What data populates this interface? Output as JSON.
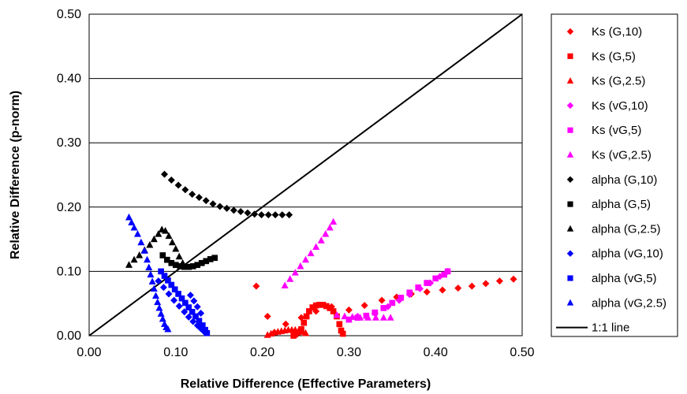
{
  "chart_data": {
    "type": "scatter",
    "title": "",
    "xlabel": "Relative Difference (Effective Parameters)",
    "ylabel": "Relative Difference (p-norm)",
    "xlim": [
      0,
      0.5
    ],
    "ylim": [
      0,
      0.5
    ],
    "x_ticks": [
      "0.00",
      "0.10",
      "0.20",
      "0.30",
      "0.40",
      "0.50"
    ],
    "y_ticks": [
      "0.00",
      "0.10",
      "0.20",
      "0.30",
      "0.40",
      "0.50"
    ],
    "grid": "horizontal",
    "legend_position": "right",
    "series": [
      {
        "name": "Ks (G,10)",
        "marker": "diamond",
        "color": "#ff0000",
        "points": [
          [
            0.193,
            0.077
          ],
          [
            0.206,
            0.03
          ],
          [
            0.214,
            0.005
          ],
          [
            0.227,
            0.018
          ],
          [
            0.245,
            0.028
          ],
          [
            0.262,
            0.038
          ],
          [
            0.28,
            0.045
          ],
          [
            0.3,
            0.04
          ],
          [
            0.318,
            0.047
          ],
          [
            0.338,
            0.055
          ],
          [
            0.355,
            0.06
          ],
          [
            0.372,
            0.065
          ],
          [
            0.39,
            0.068
          ],
          [
            0.408,
            0.071
          ],
          [
            0.426,
            0.074
          ],
          [
            0.442,
            0.077
          ],
          [
            0.458,
            0.081
          ],
          [
            0.474,
            0.085
          ],
          [
            0.49,
            0.088
          ]
        ]
      },
      {
        "name": "Ks (G,5)",
        "marker": "square",
        "color": "#ff0000",
        "points": [
          [
            0.236,
            0.0
          ],
          [
            0.238,
            0.002
          ],
          [
            0.241,
            0.005
          ],
          [
            0.245,
            0.01
          ],
          [
            0.248,
            0.02
          ],
          [
            0.251,
            0.03
          ],
          [
            0.254,
            0.038
          ],
          [
            0.258,
            0.044
          ],
          [
            0.262,
            0.047
          ],
          [
            0.266,
            0.048
          ],
          [
            0.27,
            0.048
          ],
          [
            0.274,
            0.046
          ],
          [
            0.278,
            0.043
          ],
          [
            0.282,
            0.038
          ],
          [
            0.286,
            0.03
          ],
          [
            0.289,
            0.018
          ],
          [
            0.291,
            0.008
          ],
          [
            0.293,
            0.003
          ]
        ]
      },
      {
        "name": "Ks (G,2.5)",
        "marker": "triangle",
        "color": "#ff0000",
        "points": [
          [
            0.206,
            0.001
          ],
          [
            0.21,
            0.003
          ],
          [
            0.214,
            0.005
          ],
          [
            0.218,
            0.006
          ],
          [
            0.222,
            0.007
          ],
          [
            0.226,
            0.008
          ],
          [
            0.23,
            0.009
          ],
          [
            0.234,
            0.009
          ],
          [
            0.238,
            0.009
          ],
          [
            0.242,
            0.008
          ],
          [
            0.246,
            0.006
          ],
          [
            0.25,
            0.004
          ]
        ]
      },
      {
        "name": "Ks (vG,10)",
        "marker": "diamond",
        "color": "#ff00ff",
        "points": [
          [
            0.31,
            0.03
          ],
          [
            0.33,
            0.035
          ],
          [
            0.345,
            0.045
          ],
          [
            0.358,
            0.055
          ],
          [
            0.37,
            0.064
          ],
          [
            0.382,
            0.073
          ],
          [
            0.394,
            0.082
          ],
          [
            0.405,
            0.092
          ],
          [
            0.414,
            0.1
          ]
        ]
      },
      {
        "name": "Ks (vG,5)",
        "marker": "square",
        "color": "#ff00ff",
        "points": [
          [
            0.3,
            0.025
          ],
          [
            0.31,
            0.028
          ],
          [
            0.32,
            0.031
          ],
          [
            0.33,
            0.036
          ],
          [
            0.34,
            0.043
          ],
          [
            0.35,
            0.051
          ],
          [
            0.36,
            0.059
          ],
          [
            0.37,
            0.067
          ],
          [
            0.38,
            0.075
          ],
          [
            0.39,
            0.082
          ],
          [
            0.4,
            0.089
          ],
          [
            0.41,
            0.095
          ],
          [
            0.414,
            0.1
          ]
        ]
      },
      {
        "name": "Ks (vG,2.5)",
        "marker": "triangle",
        "color": "#ff00ff",
        "points": [
          [
            0.226,
            0.078
          ],
          [
            0.232,
            0.088
          ],
          [
            0.238,
            0.098
          ],
          [
            0.244,
            0.108
          ],
          [
            0.25,
            0.118
          ],
          [
            0.256,
            0.128
          ],
          [
            0.262,
            0.138
          ],
          [
            0.268,
            0.148
          ],
          [
            0.273,
            0.158
          ],
          [
            0.278,
            0.168
          ],
          [
            0.282,
            0.177
          ],
          [
            0.286,
            0.032
          ],
          [
            0.295,
            0.03
          ],
          [
            0.304,
            0.029
          ],
          [
            0.313,
            0.028
          ],
          [
            0.322,
            0.028
          ],
          [
            0.331,
            0.028
          ],
          [
            0.34,
            0.028
          ],
          [
            0.348,
            0.028
          ]
        ]
      },
      {
        "name": "alpha (G,10)",
        "marker": "diamond",
        "color": "#000000",
        "points": [
          [
            0.087,
            0.251
          ],
          [
            0.095,
            0.242
          ],
          [
            0.103,
            0.234
          ],
          [
            0.111,
            0.227
          ],
          [
            0.119,
            0.22
          ],
          [
            0.127,
            0.215
          ],
          [
            0.135,
            0.21
          ],
          [
            0.143,
            0.205
          ],
          [
            0.151,
            0.201
          ],
          [
            0.159,
            0.198
          ],
          [
            0.167,
            0.195
          ],
          [
            0.175,
            0.193
          ],
          [
            0.183,
            0.191
          ],
          [
            0.191,
            0.189
          ],
          [
            0.199,
            0.188
          ],
          [
            0.207,
            0.188
          ],
          [
            0.215,
            0.188
          ],
          [
            0.223,
            0.188
          ],
          [
            0.231,
            0.188
          ]
        ]
      },
      {
        "name": "alpha (G,5)",
        "marker": "square",
        "color": "#000000",
        "points": [
          [
            0.085,
            0.125
          ],
          [
            0.09,
            0.118
          ],
          [
            0.095,
            0.113
          ],
          [
            0.1,
            0.11
          ],
          [
            0.105,
            0.108
          ],
          [
            0.11,
            0.107
          ],
          [
            0.115,
            0.107
          ],
          [
            0.12,
            0.108
          ],
          [
            0.125,
            0.11
          ],
          [
            0.13,
            0.113
          ],
          [
            0.135,
            0.116
          ],
          [
            0.14,
            0.119
          ],
          [
            0.145,
            0.121
          ]
        ]
      },
      {
        "name": "alpha (G,2.5)",
        "marker": "triangle",
        "color": "#000000",
        "points": [
          [
            0.046,
            0.11
          ],
          [
            0.052,
            0.118
          ],
          [
            0.058,
            0.125
          ],
          [
            0.064,
            0.133
          ],
          [
            0.07,
            0.141
          ],
          [
            0.075,
            0.15
          ],
          [
            0.08,
            0.158
          ],
          [
            0.084,
            0.165
          ],
          [
            0.088,
            0.163
          ],
          [
            0.092,
            0.155
          ],
          [
            0.096,
            0.145
          ],
          [
            0.1,
            0.135
          ],
          [
            0.104,
            0.123
          ],
          [
            0.108,
            0.113
          ],
          [
            0.112,
            0.107
          ]
        ]
      },
      {
        "name": "alpha (vG,10)",
        "marker": "diamond",
        "color": "#0000ff",
        "points": [
          [
            0.08,
            0.085
          ],
          [
            0.086,
            0.075
          ],
          [
            0.092,
            0.065
          ],
          [
            0.098,
            0.055
          ],
          [
            0.104,
            0.046
          ],
          [
            0.11,
            0.037
          ],
          [
            0.115,
            0.029
          ],
          [
            0.12,
            0.022
          ],
          [
            0.125,
            0.016
          ],
          [
            0.129,
            0.011
          ],
          [
            0.133,
            0.006
          ],
          [
            0.117,
            0.063
          ],
          [
            0.121,
            0.054
          ],
          [
            0.125,
            0.045
          ],
          [
            0.129,
            0.035
          ]
        ]
      },
      {
        "name": "alpha (vG,5)",
        "marker": "square",
        "color": "#0000ff",
        "points": [
          [
            0.083,
            0.1
          ],
          [
            0.087,
            0.093
          ],
          [
            0.091,
            0.086
          ],
          [
            0.095,
            0.079
          ],
          [
            0.099,
            0.072
          ],
          [
            0.103,
            0.065
          ],
          [
            0.107,
            0.058
          ],
          [
            0.111,
            0.051
          ],
          [
            0.115,
            0.044
          ],
          [
            0.119,
            0.037
          ],
          [
            0.123,
            0.03
          ],
          [
            0.127,
            0.023
          ],
          [
            0.131,
            0.016
          ],
          [
            0.134,
            0.009
          ],
          [
            0.136,
            0.004
          ]
        ]
      },
      {
        "name": "alpha (vG,2.5)",
        "marker": "triangle",
        "color": "#0000ff",
        "points": [
          [
            0.046,
            0.184
          ],
          [
            0.049,
            0.176
          ],
          [
            0.052,
            0.168
          ],
          [
            0.056,
            0.158
          ],
          [
            0.06,
            0.145
          ],
          [
            0.064,
            0.132
          ],
          [
            0.067,
            0.118
          ],
          [
            0.069,
            0.106
          ],
          [
            0.071,
            0.095
          ],
          [
            0.073,
            0.084
          ],
          [
            0.075,
            0.073
          ],
          [
            0.077,
            0.062
          ],
          [
            0.079,
            0.052
          ],
          [
            0.081,
            0.043
          ],
          [
            0.083,
            0.034
          ],
          [
            0.085,
            0.026
          ],
          [
            0.087,
            0.018
          ],
          [
            0.089,
            0.013
          ],
          [
            0.091,
            0.01
          ]
        ]
      }
    ],
    "reference_line": {
      "name": "1:1 line",
      "color": "#000000",
      "points": [
        [
          0,
          0
        ],
        [
          0.5,
          0.5
        ]
      ]
    }
  }
}
